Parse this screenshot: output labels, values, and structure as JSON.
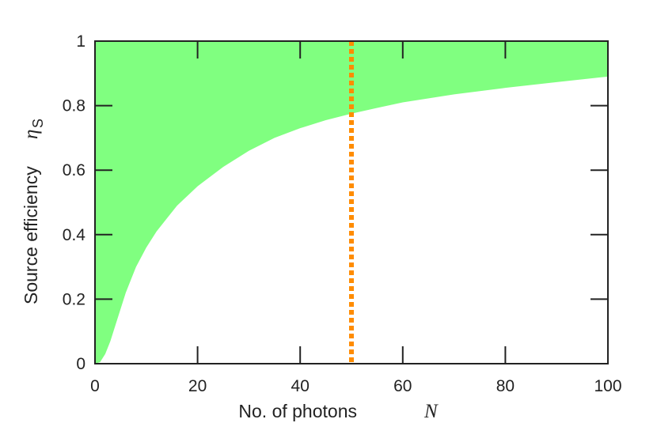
{
  "chart_data": {
    "type": "area",
    "xlabel": "No. of photons",
    "xlabel_var": "N",
    "ylabel": "Source efficiency",
    "ylabel_var": "η",
    "ylabel_sub": "S",
    "xlim": [
      0,
      100
    ],
    "ylim": [
      0,
      1
    ],
    "x_ticks": [
      0,
      20,
      40,
      60,
      80,
      100
    ],
    "y_ticks": [
      0,
      0.2,
      0.4,
      0.6,
      0.8,
      1
    ],
    "x_tick_labels": [
      "0",
      "20",
      "40",
      "60",
      "80",
      "100"
    ],
    "y_tick_labels": [
      "0",
      "0.2",
      "0.4",
      "0.6",
      "0.8",
      "1"
    ],
    "grid": false,
    "series": [
      {
        "kind": "shaded-region",
        "color": "#80ff80",
        "upper": 1,
        "lower_boundary": {
          "x": [
            0,
            1,
            2,
            3,
            4,
            5,
            6,
            7,
            8,
            10,
            12,
            14,
            16,
            18,
            20,
            25,
            30,
            35,
            40,
            45,
            50,
            55,
            60,
            70,
            80,
            90,
            100
          ],
          "y": [
            0,
            0.005,
            0.03,
            0.07,
            0.12,
            0.17,
            0.22,
            0.26,
            0.3,
            0.36,
            0.41,
            0.45,
            0.49,
            0.52,
            0.55,
            0.61,
            0.66,
            0.7,
            0.73,
            0.755,
            0.775,
            0.793,
            0.81,
            0.835,
            0.855,
            0.873,
            0.89
          ]
        }
      },
      {
        "kind": "vertical-line",
        "x": 50,
        "color": "#ff8c00",
        "style": "dotted"
      }
    ]
  }
}
